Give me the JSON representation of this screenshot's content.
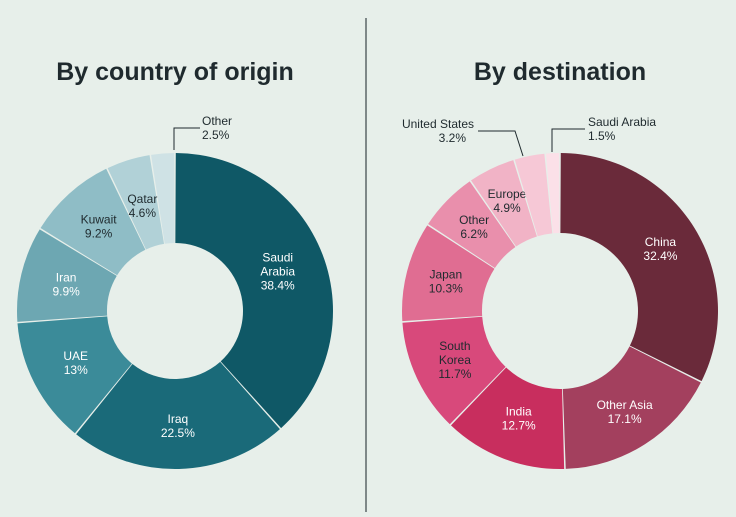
{
  "chart_data": [
    {
      "type": "pie",
      "title": "By country of origin",
      "slices": [
        {
          "label": [
            "Saudi",
            "Arabia"
          ],
          "value": "38.4%",
          "share": 38.4,
          "color": "#0f5866",
          "label_color": "#ffffff"
        },
        {
          "label": [
            "Iraq"
          ],
          "value": "22.5%",
          "share": 22.5,
          "color": "#1a6a79",
          "label_color": "#ffffff"
        },
        {
          "label": [
            "UAE"
          ],
          "value": "13%",
          "share": 13.0,
          "color": "#3b8b99",
          "label_color": "#ffffff"
        },
        {
          "label": [
            "Iran"
          ],
          "value": "9.9%",
          "share": 9.9,
          "color": "#6da7b2",
          "label_color": "#ffffff"
        },
        {
          "label": [
            "Kuwait"
          ],
          "value": "9.2%",
          "share": 9.2,
          "color": "#8fbdc6",
          "label_color": "#1f2a2e"
        },
        {
          "label": [
            "Qatar"
          ],
          "value": "4.6%",
          "share": 4.6,
          "color": "#b1d1d7",
          "label_color": "#1f2a2e"
        },
        {
          "label": [
            "Other"
          ],
          "value": "2.5%",
          "share": 2.5,
          "color": "#cfe2e5",
          "label_color": "#1f2a2e"
        }
      ]
    },
    {
      "type": "pie",
      "title": "By destination",
      "slices": [
        {
          "label": [
            "China"
          ],
          "value": "32.4%",
          "share": 32.4,
          "color": "#6a2a3a",
          "label_color": "#ffffff"
        },
        {
          "label": [
            "Other Asia"
          ],
          "value": "17.1%",
          "share": 17.1,
          "color": "#a3405e",
          "label_color": "#ffffff"
        },
        {
          "label": [
            "India"
          ],
          "value": "12.7%",
          "share": 12.7,
          "color": "#c82e5e",
          "label_color": "#ffffff"
        },
        {
          "label": [
            "South",
            "Korea"
          ],
          "value": "11.7%",
          "share": 11.7,
          "color": "#d8497b",
          "label_color": "#1f2a2e"
        },
        {
          "label": [
            "Japan"
          ],
          "value": "10.3%",
          "share": 10.3,
          "color": "#e06d92",
          "label_color": "#1f2a2e"
        },
        {
          "label": [
            "Other"
          ],
          "value": "6.2%",
          "share": 6.2,
          "color": "#e98fac",
          "label_color": "#1f2a2e"
        },
        {
          "label": [
            "Europe"
          ],
          "value": "4.9%",
          "share": 4.9,
          "color": "#f1b3c6",
          "label_color": "#1f2a2e"
        },
        {
          "label": [
            "United States"
          ],
          "value": "3.2%",
          "share": 3.2,
          "color": "#f6c8d6",
          "label_color": "#1f2a2e"
        },
        {
          "label": [
            "Saudi Arabia"
          ],
          "value": "1.5%",
          "share": 1.5,
          "color": "#fbe0e8",
          "label_color": "#1f2a2e"
        }
      ]
    }
  ]
}
